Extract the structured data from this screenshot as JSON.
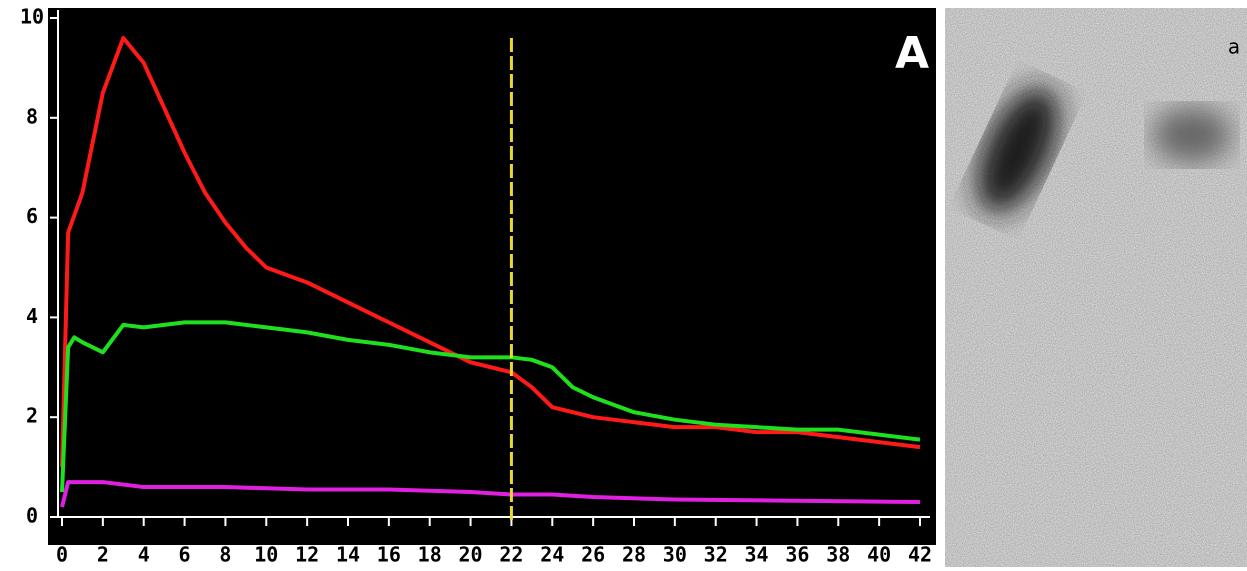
{
  "chart_data": {
    "type": "line",
    "annotation": "A",
    "xlim": [
      0,
      42
    ],
    "ylim": [
      0,
      10
    ],
    "xticks": [
      0,
      2,
      4,
      6,
      8,
      10,
      12,
      14,
      16,
      18,
      20,
      22,
      24,
      26,
      28,
      30,
      32,
      34,
      36,
      38,
      40,
      42
    ],
    "yticks": [
      0,
      2,
      4,
      6,
      8,
      10
    ],
    "series": [
      {
        "color": "#ff1a1a",
        "x": [
          0,
          0.3,
          1,
          2,
          3,
          4,
          5,
          6,
          7,
          8,
          9,
          10,
          12,
          14,
          16,
          18,
          20,
          22,
          23,
          24,
          26,
          28,
          30,
          32,
          34,
          36,
          38,
          40,
          42
        ],
        "values": [
          1,
          5.7,
          6.5,
          8.5,
          9.6,
          9.1,
          8.2,
          7.3,
          6.5,
          5.9,
          5.4,
          5.0,
          4.7,
          4.3,
          3.9,
          3.5,
          3.1,
          2.9,
          2.6,
          2.2,
          2.0,
          1.9,
          1.8,
          1.8,
          1.7,
          1.7,
          1.6,
          1.5,
          1.4
        ]
      },
      {
        "color": "#1ee01e",
        "x": [
          0,
          0.3,
          0.6,
          1,
          2,
          3,
          4,
          6,
          8,
          10,
          12,
          14,
          16,
          18,
          20,
          22,
          23,
          24,
          25,
          26,
          28,
          30,
          32,
          34,
          36,
          38,
          40,
          42
        ],
        "values": [
          0.5,
          3.4,
          3.6,
          3.5,
          3.3,
          3.85,
          3.8,
          3.9,
          3.9,
          3.8,
          3.7,
          3.55,
          3.45,
          3.3,
          3.2,
          3.2,
          3.15,
          3.0,
          2.6,
          2.4,
          2.1,
          1.95,
          1.85,
          1.8,
          1.75,
          1.75,
          1.65,
          1.55
        ]
      },
      {
        "color": "#e020e0",
        "x": [
          0,
          0.3,
          2,
          4,
          8,
          12,
          16,
          20,
          22,
          24,
          26,
          30,
          42
        ],
        "values": [
          0.2,
          0.7,
          0.7,
          0.6,
          0.6,
          0.55,
          0.55,
          0.5,
          0.45,
          0.45,
          0.4,
          0.35,
          0.3
        ]
      }
    ],
    "vline": {
      "x": 22,
      "color": "#e8d830"
    }
  },
  "image": {
    "label": "a"
  }
}
